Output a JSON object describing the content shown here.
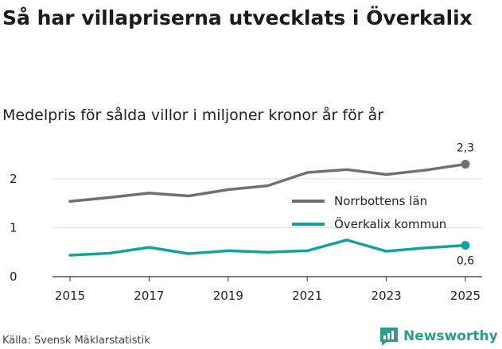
{
  "title": "Så har villapriserna utvecklats i Överkalix",
  "subtitle": "Medelpris för sålda villor i miljoner kronor år för år",
  "source": "Källa: Svensk Mäklarstatistik",
  "brand": "Newsworthy",
  "colors": {
    "norrbotten": "#6f6f74",
    "overkalix": "#13a39c",
    "brand": "#2a9d8f"
  },
  "chart_data": {
    "type": "line",
    "title": "Så har villapriserna utvecklats i Överkalix",
    "subtitle": "Medelpris för sålda villor i miljoner kronor år för år",
    "xlabel": "",
    "ylabel": "",
    "x": [
      2015,
      2016,
      2017,
      2018,
      2019,
      2020,
      2021,
      2022,
      2023,
      2024,
      2025
    ],
    "xticks": [
      2015,
      2017,
      2019,
      2021,
      2023,
      2025
    ],
    "xtick_labels": [
      "2015",
      "2017",
      "2019",
      "2021",
      "2023",
      "2025"
    ],
    "yticks": [
      0,
      1,
      2
    ],
    "ytick_labels": [
      "0",
      "1",
      "2"
    ],
    "ylim": [
      0,
      2.5
    ],
    "grid": true,
    "legend_position": "right",
    "series": [
      {
        "name": "Norrbottens län",
        "color": "#6f6f74",
        "values": [
          1.54,
          1.62,
          1.71,
          1.65,
          1.78,
          1.86,
          2.13,
          2.19,
          2.09,
          2.18,
          2.3
        ],
        "end_label": "2,3"
      },
      {
        "name": "Överkalix kommun",
        "color": "#13a39c",
        "values": [
          0.44,
          0.48,
          0.6,
          0.47,
          0.53,
          0.5,
          0.53,
          0.75,
          0.52,
          0.59,
          0.64
        ],
        "end_label": "0,6"
      }
    ]
  }
}
